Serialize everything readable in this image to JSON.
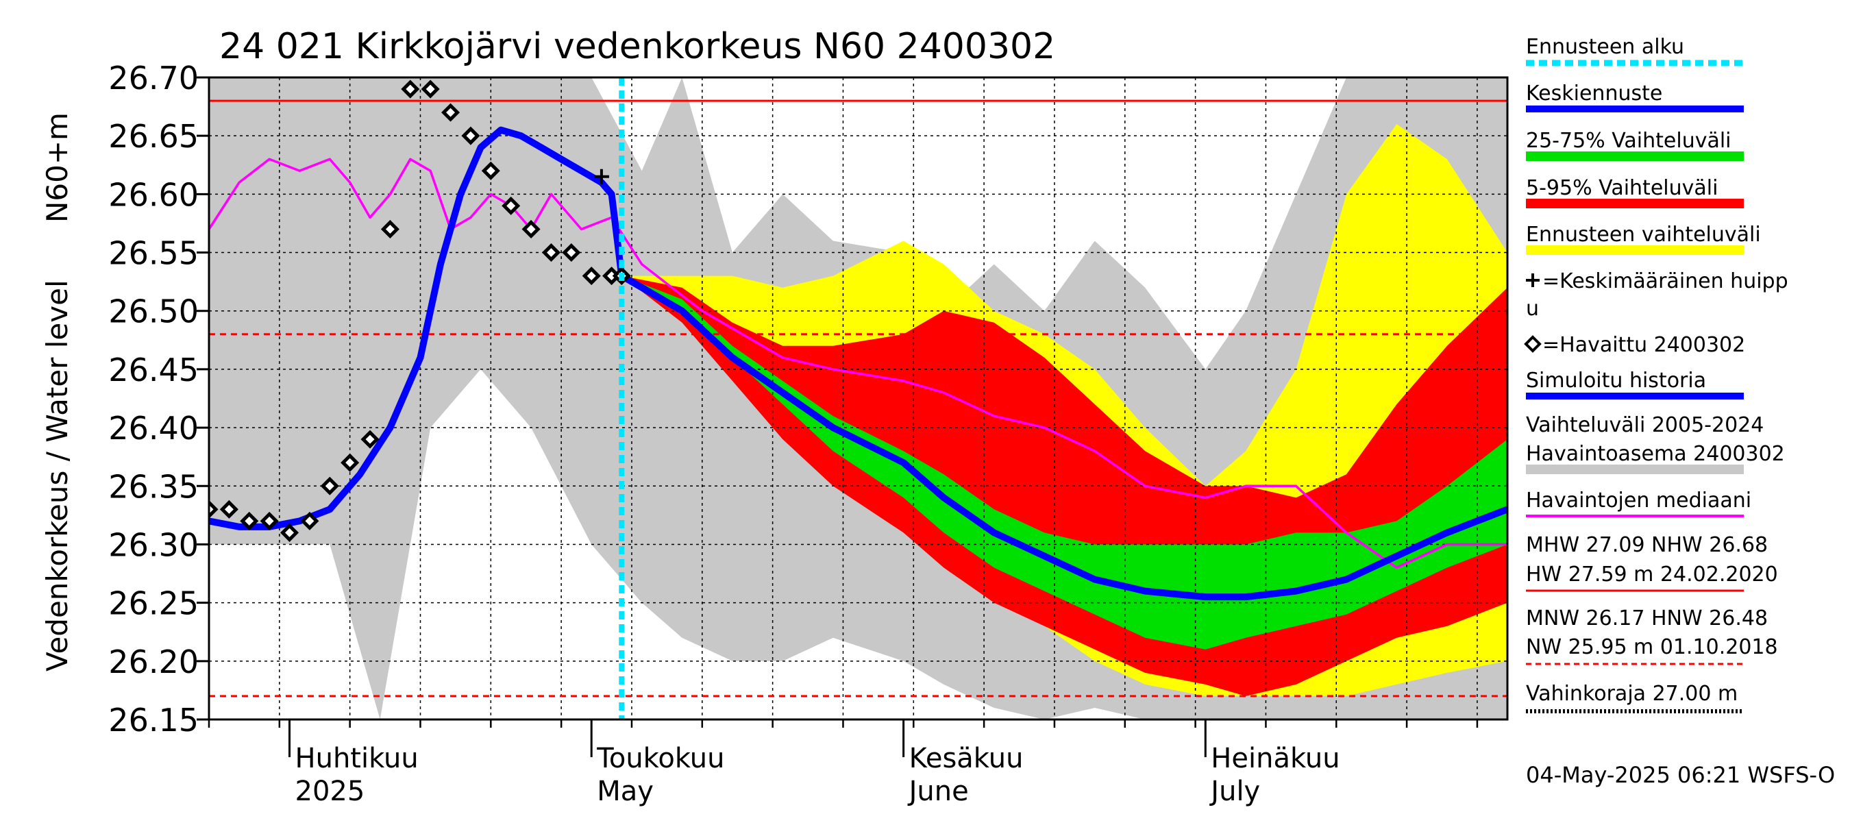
{
  "chart_data": {
    "type": "line",
    "title": "24 021 Kirkkojärvi vedenkorkeus N60 2400302",
    "ylabel_main": "Vedenkorkeus / Water level",
    "ylabel_unit": "N60+m",
    "ylim": [
      26.15,
      26.7
    ],
    "yticks": [
      "26.70",
      "26.65",
      "26.60",
      "26.55",
      "26.50",
      "26.45",
      "26.40",
      "26.35",
      "26.30",
      "26.25",
      "26.20",
      "26.15"
    ],
    "x_range": [
      "2025-03-24",
      "2025-07-31"
    ],
    "forecast_start": "2025-05-04",
    "month_labels": [
      {
        "fi": "Huhtikuu",
        "en": "2025",
        "date": "2025-04-01"
      },
      {
        "fi": "Toukokuu",
        "en": "May",
        "date": "2025-05-01"
      },
      {
        "fi": "Kesäkuu",
        "en": "June",
        "date": "2025-06-01"
      },
      {
        "fi": "Heinäkuu",
        "en": "July",
        "date": "2025-07-01"
      }
    ],
    "reference_lines": [
      {
        "name": "NHW",
        "value": 26.68,
        "style": "solid",
        "color": "#ff0000"
      },
      {
        "name": "HNW",
        "value": 26.48,
        "style": "dashed",
        "color": "#ff0000"
      },
      {
        "name": "MNW",
        "value": 26.17,
        "style": "dashed",
        "color": "#ff0000"
      }
    ],
    "history_band": {
      "color": "#c8c8c8",
      "x": [
        "2025-03-24",
        "2025-04-05",
        "2025-04-10",
        "2025-04-15",
        "2025-04-20",
        "2025-04-25",
        "2025-05-01",
        "2025-05-06",
        "2025-05-10",
        "2025-05-15",
        "2025-05-20",
        "2025-05-25",
        "2025-06-01",
        "2025-06-05",
        "2025-06-10",
        "2025-06-15",
        "2025-06-20",
        "2025-06-25",
        "2025-07-01",
        "2025-07-05",
        "2025-07-10",
        "2025-07-15",
        "2025-07-20",
        "2025-07-25",
        "2025-07-31"
      ],
      "upper": [
        26.7,
        26.7,
        26.7,
        26.7,
        26.7,
        26.7,
        26.7,
        26.62,
        26.7,
        26.55,
        26.6,
        26.56,
        26.55,
        26.5,
        26.54,
        26.5,
        26.56,
        26.52,
        26.45,
        26.5,
        26.6,
        26.7,
        26.7,
        26.7,
        26.7
      ],
      "lower": [
        26.3,
        26.3,
        26.15,
        26.4,
        26.45,
        26.4,
        26.3,
        26.25,
        26.22,
        26.2,
        26.2,
        26.22,
        26.2,
        26.18,
        26.16,
        26.15,
        26.16,
        26.15,
        26.15,
        26.15,
        26.15,
        26.15,
        26.15,
        26.15,
        26.15
      ]
    },
    "forecast_bands": [
      {
        "name": "Ennusteen vaihteluväli",
        "color": "#ffff00",
        "x": [
          "2025-05-04",
          "2025-05-10",
          "2025-05-15",
          "2025-05-20",
          "2025-05-25",
          "2025-06-01",
          "2025-06-05",
          "2025-06-10",
          "2025-06-15",
          "2025-06-20",
          "2025-06-25",
          "2025-07-01",
          "2025-07-05",
          "2025-07-10",
          "2025-07-15",
          "2025-07-20",
          "2025-07-25",
          "2025-07-31"
        ],
        "upper": [
          26.53,
          26.53,
          26.53,
          26.52,
          26.53,
          26.56,
          26.54,
          26.5,
          26.48,
          26.45,
          26.4,
          26.35,
          26.38,
          26.45,
          26.6,
          26.66,
          26.63,
          26.55
        ],
        "lower": [
          26.53,
          26.5,
          26.45,
          26.4,
          26.36,
          26.32,
          26.29,
          26.26,
          26.23,
          26.2,
          26.18,
          26.17,
          26.17,
          26.17,
          26.17,
          26.18,
          26.19,
          26.2
        ]
      },
      {
        "name": "5-95% Vaihteluväli",
        "color": "#ff0000",
        "x": [
          "2025-05-04",
          "2025-05-10",
          "2025-05-15",
          "2025-05-20",
          "2025-05-25",
          "2025-06-01",
          "2025-06-05",
          "2025-06-10",
          "2025-06-15",
          "2025-06-20",
          "2025-06-25",
          "2025-07-01",
          "2025-07-05",
          "2025-07-10",
          "2025-07-15",
          "2025-07-20",
          "2025-07-25",
          "2025-07-31"
        ],
        "upper": [
          26.53,
          26.52,
          26.49,
          26.47,
          26.47,
          26.48,
          26.5,
          26.49,
          26.46,
          26.42,
          26.38,
          26.35,
          26.35,
          26.34,
          26.36,
          26.42,
          26.47,
          26.52
        ],
        "lower": [
          26.53,
          26.49,
          26.44,
          26.39,
          26.35,
          26.31,
          26.28,
          26.25,
          26.23,
          26.21,
          26.19,
          26.18,
          26.17,
          26.18,
          26.2,
          26.22,
          26.23,
          26.25
        ]
      },
      {
        "name": "25-75% Vaihteluväli",
        "color": "#00e000",
        "x": [
          "2025-05-04",
          "2025-05-10",
          "2025-05-15",
          "2025-05-20",
          "2025-05-25",
          "2025-06-01",
          "2025-06-05",
          "2025-06-10",
          "2025-06-15",
          "2025-06-20",
          "2025-06-25",
          "2025-07-01",
          "2025-07-05",
          "2025-07-10",
          "2025-07-15",
          "2025-07-20",
          "2025-07-25",
          "2025-07-31"
        ],
        "upper": [
          26.53,
          26.51,
          26.47,
          26.44,
          26.41,
          26.38,
          26.36,
          26.33,
          26.31,
          26.3,
          26.3,
          26.3,
          26.3,
          26.31,
          26.31,
          26.32,
          26.35,
          26.39
        ],
        "lower": [
          26.53,
          26.5,
          26.46,
          26.42,
          26.38,
          26.34,
          26.31,
          26.28,
          26.26,
          26.24,
          26.22,
          26.21,
          26.22,
          26.23,
          26.24,
          26.26,
          26.28,
          26.3
        ]
      }
    ],
    "series": [
      {
        "name": "Havaintojen mediaani",
        "color": "#ff00ff",
        "x": [
          "2025-03-24",
          "2025-03-27",
          "2025-03-30",
          "2025-04-02",
          "2025-04-05",
          "2025-04-07",
          "2025-04-09",
          "2025-04-11",
          "2025-04-13",
          "2025-04-15",
          "2025-04-17",
          "2025-04-19",
          "2025-04-21",
          "2025-04-23",
          "2025-04-25",
          "2025-04-27",
          "2025-04-30",
          "2025-05-03",
          "2025-05-06",
          "2025-05-09",
          "2025-05-12",
          "2025-05-16",
          "2025-05-20",
          "2025-05-25",
          "2025-06-01",
          "2025-06-05",
          "2025-06-10",
          "2025-06-15",
          "2025-06-20",
          "2025-06-25",
          "2025-07-01",
          "2025-07-05",
          "2025-07-10",
          "2025-07-15",
          "2025-07-20",
          "2025-07-25",
          "2025-07-31"
        ],
        "y": [
          26.57,
          26.61,
          26.63,
          26.62,
          26.63,
          26.61,
          26.58,
          26.6,
          26.63,
          26.62,
          26.57,
          26.58,
          26.6,
          26.59,
          26.57,
          26.6,
          26.57,
          26.58,
          26.54,
          26.52,
          26.5,
          26.48,
          26.46,
          26.45,
          26.44,
          26.43,
          26.41,
          26.4,
          26.38,
          26.35,
          26.34,
          26.35,
          26.35,
          26.31,
          26.28,
          26.3,
          26.3
        ]
      },
      {
        "name": "Simuloitu historia",
        "color": "#0000ff",
        "x": [
          "2025-03-24",
          "2025-03-27",
          "2025-03-30",
          "2025-04-02",
          "2025-04-05",
          "2025-04-08",
          "2025-04-11",
          "2025-04-14",
          "2025-04-16",
          "2025-04-18",
          "2025-04-20",
          "2025-04-22",
          "2025-04-24",
          "2025-04-26",
          "2025-04-28",
          "2025-04-30",
          "2025-05-02",
          "2025-05-03",
          "2025-05-04"
        ],
        "y": [
          26.32,
          26.315,
          26.315,
          26.32,
          26.33,
          26.36,
          26.4,
          26.46,
          26.54,
          26.6,
          26.64,
          26.655,
          26.65,
          26.64,
          26.63,
          26.62,
          26.61,
          26.6,
          26.53
        ]
      },
      {
        "name": "Keskiennuste",
        "color": "#0000ff",
        "x": [
          "2025-05-04",
          "2025-05-10",
          "2025-05-15",
          "2025-05-20",
          "2025-05-25",
          "2025-06-01",
          "2025-06-05",
          "2025-06-10",
          "2025-06-15",
          "2025-06-20",
          "2025-06-25",
          "2025-07-01",
          "2025-07-05",
          "2025-07-10",
          "2025-07-15",
          "2025-07-20",
          "2025-07-25",
          "2025-07-31"
        ],
        "y": [
          26.53,
          26.5,
          26.46,
          26.43,
          26.4,
          26.37,
          26.34,
          26.31,
          26.29,
          26.27,
          26.26,
          26.255,
          26.255,
          26.26,
          26.27,
          26.29,
          26.31,
          26.33
        ]
      },
      {
        "name": "Havaittu 2400302",
        "color": "#000000",
        "marker": "diamond",
        "x": [
          "2025-03-24",
          "2025-03-26",
          "2025-03-28",
          "2025-03-30",
          "2025-04-01",
          "2025-04-03",
          "2025-04-05",
          "2025-04-07",
          "2025-04-09",
          "2025-04-11",
          "2025-04-13",
          "2025-04-15",
          "2025-04-17",
          "2025-04-19",
          "2025-04-21",
          "2025-04-23",
          "2025-04-25",
          "2025-04-27",
          "2025-04-29",
          "2025-05-01",
          "2025-05-03",
          "2025-05-04"
        ],
        "y": [
          26.33,
          26.33,
          26.32,
          26.32,
          26.31,
          26.32,
          26.35,
          26.37,
          26.39,
          26.57,
          26.69,
          26.69,
          26.67,
          26.65,
          26.62,
          26.59,
          26.57,
          26.55,
          26.55,
          26.53,
          26.53,
          26.53
        ]
      },
      {
        "name": "Keskimääräinen huippu",
        "color": "#000000",
        "marker": "plus",
        "x": [
          "2025-05-02"
        ],
        "y": [
          26.615
        ]
      }
    ],
    "legend": [
      {
        "label": "Ennusteen alku",
        "color": "#00e5ff",
        "style": "dotted"
      },
      {
        "label": "Keskiennuste",
        "color": "#0000ff",
        "style": "solid"
      },
      {
        "label": "25-75% Vaihteluväli",
        "color": "#00e000",
        "style": "solid"
      },
      {
        "label": "5-95% Vaihteluväli",
        "color": "#ff0000",
        "style": "solid"
      },
      {
        "label": "Ennusteen vaihteluväli",
        "color": "#ffff00",
        "style": "solid"
      },
      {
        "label": "=Keskimääräinen huipp",
        "label2": "u",
        "marker": "plus"
      },
      {
        "label": "=Havaittu 2400302",
        "marker": "diamond"
      },
      {
        "label": "Simuloitu historia",
        "color": "#0000ff",
        "style": "solid"
      },
      {
        "label": "Vaihteluväli 2005-2024",
        "label2": " Havaintoasema 2400302",
        "color": "#c8c8c8",
        "style": "solid"
      },
      {
        "label": "Havaintojen mediaani",
        "color": "#ff00ff",
        "style": "solid"
      },
      {
        "label": "MHW  27.09 NHW  26.68",
        "label2": "HW  27.59 m 24.02.2020",
        "color": "#ff0000",
        "style": "solid"
      },
      {
        "label": "MNW  26.17 HNW  26.48",
        "label2": "NW  25.95 m 01.10.2018",
        "color": "#ff0000",
        "style": "dashed"
      },
      {
        "label": "Vahinkoraja 27.00 m",
        "color": "#000000",
        "style": "dotted"
      }
    ],
    "footer": "04-May-2025 06:21 WSFS-O"
  }
}
